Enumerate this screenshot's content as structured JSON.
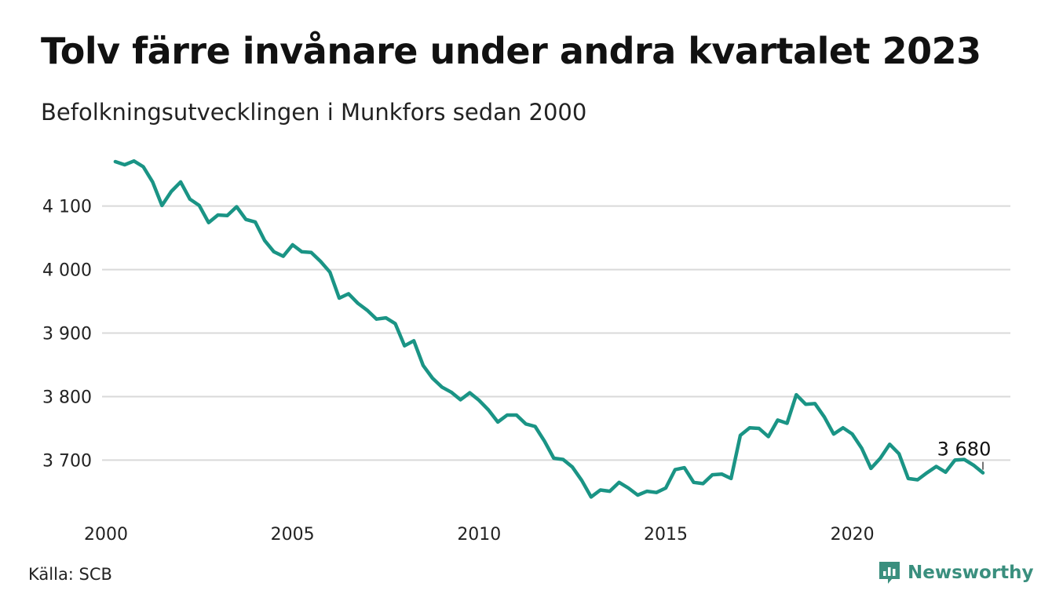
{
  "title": "Tolv färre invånare under andra kvartalet 2023",
  "subtitle": "Befolkningsutvecklingen i Munkfors sedan 2000",
  "source": "Källa: SCB",
  "brand": {
    "name": "Newsworthy",
    "icon": "newsworthy-logo-icon",
    "color": "#3a8f7e"
  },
  "colors": {
    "line": "#1a9485",
    "grid": "#d9d9d9",
    "text": "#222222"
  },
  "chart_data": {
    "type": "line",
    "title": "",
    "xlabel": "",
    "ylabel": "",
    "xlim": [
      2000,
      2023.5
    ],
    "ylim": [
      3640,
      4170
    ],
    "grid": true,
    "yticks": [
      3700,
      3800,
      3900,
      4000,
      4100
    ],
    "ytick_labels": [
      "3 700",
      "3 800",
      "3 900",
      "4 000",
      "4 100"
    ],
    "xticks": [
      2000,
      2005,
      2010,
      2015,
      2020
    ],
    "xtick_labels": [
      "2000",
      "2005",
      "2010",
      "2015",
      "2020"
    ],
    "annotation": {
      "x": 2023.5,
      "y": 3680,
      "label": "3 680"
    },
    "series": [
      {
        "x": [
          2000.25,
          2000.5,
          2000.75,
          2001,
          2001.25,
          2001.5,
          2001.75,
          2002,
          2002.25,
          2002.5,
          2002.75,
          2003,
          2003.25,
          2003.5,
          2003.75,
          2004,
          2004.25,
          2004.5,
          2004.75,
          2005,
          2005.25,
          2005.5,
          2005.75,
          2006,
          2006.25,
          2006.5,
          2006.75,
          2007,
          2007.25,
          2007.5,
          2007.75,
          2008,
          2008.25,
          2008.5,
          2008.75,
          2009,
          2009.25,
          2009.5,
          2009.75,
          2010,
          2010.25,
          2010.5,
          2010.75,
          2011,
          2011.25,
          2011.5,
          2011.75,
          2012,
          2012.25,
          2012.5,
          2012.75,
          2013,
          2013.25,
          2013.5,
          2013.75,
          2014,
          2014.25,
          2014.5,
          2014.75,
          2015,
          2015.25,
          2015.5,
          2015.75,
          2016,
          2016.25,
          2016.5,
          2016.75,
          2017,
          2017.25,
          2017.5,
          2017.75,
          2018,
          2018.25,
          2018.5,
          2018.75,
          2019,
          2019.25,
          2019.5,
          2019.75,
          2020,
          2020.25,
          2020.5,
          2020.75,
          2021,
          2021.25,
          2021.5,
          2021.75,
          2022,
          2022.25,
          2022.5,
          2022.75,
          2023,
          2023.25,
          2023.5
        ],
        "values": [
          4170,
          4165,
          4171,
          4162,
          4138,
          4101,
          4123,
          4138,
          4111,
          4101,
          4074,
          4086,
          4085,
          4099,
          4079,
          4075,
          4046,
          4028,
          4021,
          4039,
          4028,
          4027,
          4013,
          3996,
          3955,
          3962,
          3947,
          3936,
          3922,
          3924,
          3915,
          3880,
          3888,
          3849,
          3829,
          3815,
          3807,
          3795,
          3806,
          3794,
          3779,
          3760,
          3771,
          3771,
          3757,
          3753,
          3730,
          3703,
          3701,
          3689,
          3668,
          3642,
          3653,
          3651,
          3665,
          3656,
          3645,
          3651,
          3649,
          3656,
          3685,
          3688,
          3665,
          3663,
          3677,
          3678,
          3671,
          3739,
          3751,
          3750,
          3737,
          3763,
          3758,
          3803,
          3788,
          3789,
          3768,
          3741,
          3751,
          3741,
          3719,
          3687,
          3703,
          3725,
          3710,
          3671,
          3669,
          3680,
          3690,
          3681,
          3700,
          3701,
          3692,
          3680
        ]
      }
    ]
  }
}
